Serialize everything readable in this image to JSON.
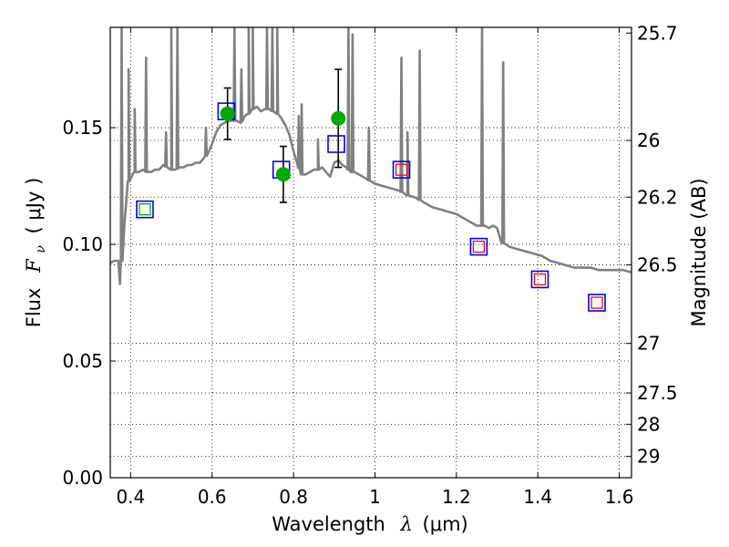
{
  "chart_data": {
    "type": "scatter",
    "xlabel_text": "Wavelength",
    "xlabel_symbol": "λ",
    "xlabel_unit": "(μm)",
    "ylabel_text": "Flux",
    "ylabel_symbol": "F",
    "ylabel_sub": "ν",
    "ylabel_unit": "( μJy )",
    "y2label": "Magnitude (AB)",
    "xlim": [
      0.35,
      1.63
    ],
    "ylim": [
      0.0,
      0.193
    ],
    "grid": true,
    "x_ticks": [
      0.4,
      0.6,
      0.8,
      1.0,
      1.2,
      1.4,
      1.6
    ],
    "x_tick_labels": [
      "0.4",
      "0.6",
      "0.8",
      "1",
      "1.2",
      "1.4",
      "1.6"
    ],
    "y_ticks": [
      0.0,
      0.05,
      0.1,
      0.15
    ],
    "y_tick_labels": [
      "0.00",
      "0.05",
      "0.10",
      "0.15"
    ],
    "mag_ticks": [
      25.7,
      26,
      26.2,
      26.5,
      27,
      27.5,
      28,
      29
    ],
    "mag_tick_labels": [
      "25.7",
      "26",
      "26.2",
      "26.5",
      "27",
      "27.5",
      "28",
      "29"
    ],
    "colors": {
      "spectrum": "#808080",
      "observed": "#00aa00",
      "model_box": "#0000ff",
      "ir_box": "#ff0000",
      "green_box": "#00aa00",
      "errorbar": "#000000"
    },
    "spectrum": {
      "name": "",
      "x": [
        0.35,
        0.36,
        0.37,
        0.372,
        0.374,
        0.38,
        0.385,
        0.39,
        0.395,
        0.4,
        0.405,
        0.41,
        0.42,
        0.43,
        0.44,
        0.45,
        0.46,
        0.47,
        0.48,
        0.49,
        0.5,
        0.51,
        0.52,
        0.53,
        0.54,
        0.55,
        0.56,
        0.57,
        0.58,
        0.59,
        0.6,
        0.61,
        0.62,
        0.63,
        0.64,
        0.65,
        0.66,
        0.67,
        0.68,
        0.69,
        0.7,
        0.71,
        0.72,
        0.73,
        0.74,
        0.75,
        0.76,
        0.77,
        0.78,
        0.79,
        0.8,
        0.81,
        0.82,
        0.83,
        0.84,
        0.85,
        0.86,
        0.87,
        0.88,
        0.89,
        0.9,
        0.91,
        0.92,
        0.93,
        0.94,
        0.95,
        0.96,
        0.97,
        0.98,
        0.99,
        1.0,
        1.02,
        1.04,
        1.06,
        1.08,
        1.1,
        1.12,
        1.14,
        1.16,
        1.18,
        1.2,
        1.22,
        1.24,
        1.25,
        1.26,
        1.27,
        1.28,
        1.29,
        1.3,
        1.31,
        1.33,
        1.35,
        1.37,
        1.39,
        1.41,
        1.43,
        1.45,
        1.47,
        1.49,
        1.51,
        1.53,
        1.55,
        1.57,
        1.59,
        1.61,
        1.63
      ],
      "y": [
        0.092,
        0.093,
        0.093,
        0.088,
        0.083,
        0.098,
        0.109,
        0.12,
        0.127,
        0.128,
        0.13,
        0.131,
        0.131,
        0.132,
        0.131,
        0.131,
        0.132,
        0.132,
        0.134,
        0.133,
        0.132,
        0.132,
        0.133,
        0.133,
        0.134,
        0.134,
        0.135,
        0.135,
        0.137,
        0.139,
        0.143,
        0.148,
        0.151,
        0.152,
        0.153,
        0.153,
        0.153,
        0.152,
        0.155,
        0.156,
        0.158,
        0.159,
        0.157,
        0.158,
        0.158,
        0.157,
        0.156,
        0.154,
        0.151,
        0.147,
        0.14,
        0.134,
        0.13,
        0.13,
        0.131,
        0.132,
        0.132,
        0.133,
        0.131,
        0.129,
        0.135,
        0.136,
        0.134,
        0.133,
        0.131,
        0.131,
        0.13,
        0.129,
        0.128,
        0.127,
        0.126,
        0.125,
        0.124,
        0.123,
        0.121,
        0.12,
        0.118,
        0.116,
        0.115,
        0.114,
        0.113,
        0.111,
        0.109,
        0.108,
        0.108,
        0.108,
        0.107,
        0.108,
        0.107,
        0.101,
        0.099,
        0.098,
        0.097,
        0.096,
        0.095,
        0.093,
        0.092,
        0.091,
        0.09,
        0.09,
        0.09,
        0.089,
        0.089,
        0.089,
        0.089,
        0.088
      ]
    },
    "emission_lines": [
      {
        "x": 0.378,
        "peak": 0.193
      },
      {
        "x": 0.395,
        "peak": 0.175
      },
      {
        "x": 0.41,
        "peak": 0.158
      },
      {
        "x": 0.438,
        "peak": 0.18
      },
      {
        "x": 0.487,
        "peak": 0.148
      },
      {
        "x": 0.5,
        "peak": 0.193
      },
      {
        "x": 0.515,
        "peak": 0.193
      },
      {
        "x": 0.585,
        "peak": 0.15
      },
      {
        "x": 0.655,
        "peak": 0.193
      },
      {
        "x": 0.672,
        "peak": 0.175
      },
      {
        "x": 0.69,
        "peak": 0.193
      },
      {
        "x": 0.7,
        "peak": 0.193
      },
      {
        "x": 0.735,
        "peak": 0.193
      },
      {
        "x": 0.748,
        "peak": 0.193
      },
      {
        "x": 0.76,
        "peak": 0.193
      },
      {
        "x": 0.813,
        "peak": 0.155
      },
      {
        "x": 0.82,
        "peak": 0.16
      },
      {
        "x": 0.86,
        "peak": 0.145
      },
      {
        "x": 0.935,
        "peak": 0.193
      },
      {
        "x": 0.945,
        "peak": 0.19
      },
      {
        "x": 0.985,
        "peak": 0.15
      },
      {
        "x": 1.065,
        "peak": 0.18
      },
      {
        "x": 1.08,
        "peak": 0.148
      },
      {
        "x": 1.11,
        "peak": 0.183
      },
      {
        "x": 1.263,
        "peak": 0.193
      },
      {
        "x": 1.315,
        "peak": 0.178
      }
    ],
    "observed": [
      {
        "x": 0.638,
        "y": 0.156,
        "err": 0.011
      },
      {
        "x": 0.775,
        "y": 0.13,
        "err": 0.012
      },
      {
        "x": 0.91,
        "y": 0.154,
        "err": 0.021
      }
    ],
    "model_blue_boxes": [
      {
        "x": 0.435,
        "y": 0.115
      },
      {
        "x": 0.635,
        "y": 0.157
      },
      {
        "x": 0.77,
        "y": 0.132
      },
      {
        "x": 0.905,
        "y": 0.143
      },
      {
        "x": 1.065,
        "y": 0.132
      },
      {
        "x": 1.255,
        "y": 0.099
      },
      {
        "x": 1.405,
        "y": 0.085
      },
      {
        "x": 1.545,
        "y": 0.075
      }
    ],
    "model_green_boxes": [
      {
        "x": 0.435,
        "y": 0.115
      }
    ],
    "model_red_boxes": [
      {
        "x": 1.065,
        "y": 0.132
      },
      {
        "x": 1.255,
        "y": 0.099
      },
      {
        "x": 1.405,
        "y": 0.085
      },
      {
        "x": 1.545,
        "y": 0.075
      }
    ]
  }
}
